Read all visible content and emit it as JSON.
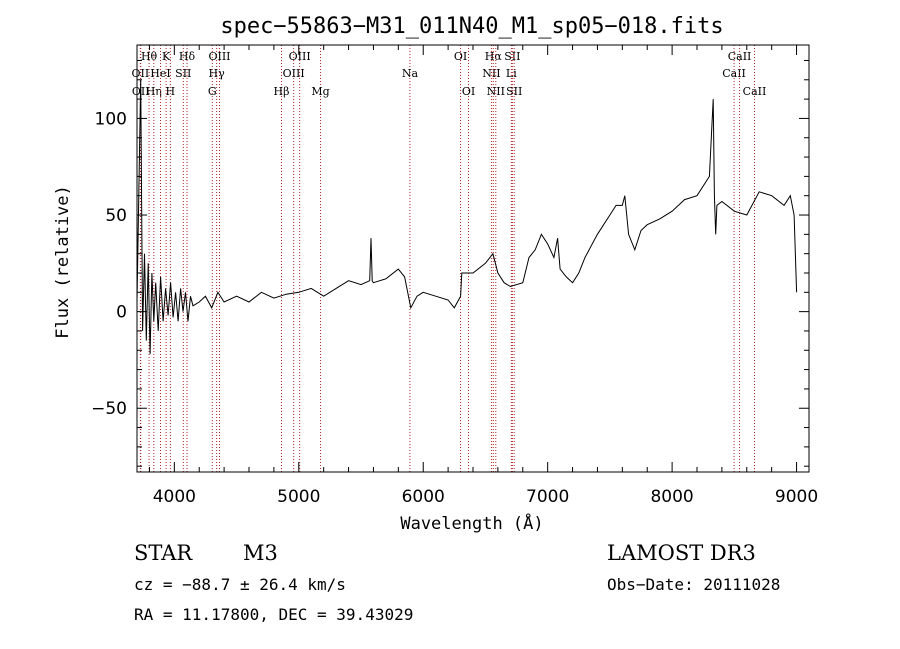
{
  "chart_data": {
    "type": "line",
    "title": "spec−55863−M31_011N40_M1_sp05−018.fits",
    "xlabel": "Wavelength (Å)",
    "ylabel": "Flux (relative)",
    "xlim": [
      3700,
      9100
    ],
    "ylim": [
      -83,
      138
    ],
    "x_ticks": [
      4000,
      5000,
      6000,
      7000,
      8000,
      9000
    ],
    "x_tick_labels": [
      "4000",
      "5000",
      "6000",
      "7000",
      "8000",
      "9000"
    ],
    "y_ticks": [
      -50,
      0,
      50,
      100
    ],
    "y_tick_labels": [
      "−50",
      "0",
      "50",
      "100"
    ],
    "series": [
      {
        "name": "spectrum",
        "color": "#000000",
        "x": [
          3700,
          3730,
          3745,
          3760,
          3775,
          3790,
          3805,
          3820,
          3835,
          3850,
          3870,
          3890,
          3910,
          3930,
          3950,
          3970,
          3990,
          4010,
          4030,
          4050,
          4070,
          4090,
          4110,
          4130,
          4150,
          4200,
          4250,
          4300,
          4350,
          4400,
          4500,
          4600,
          4700,
          4800,
          4900,
          5000,
          5100,
          5200,
          5300,
          5400,
          5500,
          5570,
          5580,
          5590,
          5600,
          5700,
          5800,
          5850,
          5900,
          5950,
          6000,
          6100,
          6200,
          6250,
          6300,
          6310,
          6400,
          6500,
          6560,
          6600,
          6650,
          6700,
          6800,
          6850,
          6900,
          6950,
          7000,
          7050,
          7080,
          7100,
          7150,
          7200,
          7250,
          7300,
          7400,
          7500,
          7550,
          7600,
          7620,
          7650,
          7700,
          7750,
          7800,
          7900,
          8000,
          8100,
          8200,
          8300,
          8330,
          8340,
          8350,
          8360,
          8400,
          8500,
          8600,
          8700,
          8800,
          8900,
          8950,
          8980,
          9000
        ],
        "values": [
          5,
          120,
          -10,
          30,
          -15,
          25,
          -22,
          20,
          -5,
          15,
          -10,
          18,
          -5,
          12,
          -2,
          15,
          -3,
          10,
          -5,
          12,
          0,
          10,
          -5,
          8,
          3,
          5,
          8,
          2,
          10,
          5,
          8,
          5,
          10,
          7,
          9,
          10,
          12,
          8,
          12,
          16,
          14,
          16,
          38,
          16,
          15,
          17,
          22,
          18,
          2,
          8,
          10,
          8,
          6,
          2,
          8,
          20,
          20,
          25,
          30,
          20,
          15,
          13,
          15,
          28,
          32,
          40,
          35,
          28,
          38,
          22,
          18,
          15,
          20,
          28,
          40,
          50,
          55,
          55,
          60,
          40,
          32,
          42,
          45,
          48,
          52,
          58,
          60,
          70,
          110,
          60,
          40,
          55,
          57,
          52,
          50,
          62,
          60,
          55,
          60,
          50,
          10
        ]
      }
    ],
    "line_markers": [
      {
        "wavelength": 3727,
        "label": "OII",
        "row": 2
      },
      {
        "wavelength": 3730,
        "label": "OII",
        "row": 3
      },
      {
        "wavelength": 3797,
        "label": "Hθ",
        "row": 1
      },
      {
        "wavelength": 3835,
        "label": "Hη",
        "row": 3
      },
      {
        "wavelength": 3889,
        "label": "HeI",
        "row": 2
      },
      {
        "wavelength": 3934,
        "label": "K",
        "row": 1
      },
      {
        "wavelength": 3968,
        "label": "H",
        "row": 3
      },
      {
        "wavelength": 4072,
        "label": "SII",
        "row": 2
      },
      {
        "wavelength": 4102,
        "label": "Hδ",
        "row": 1
      },
      {
        "wavelength": 4305,
        "label": "G",
        "row": 3
      },
      {
        "wavelength": 4340,
        "label": "Hγ",
        "row": 2
      },
      {
        "wavelength": 4363,
        "label": "OIII",
        "row": 1
      },
      {
        "wavelength": 4861,
        "label": "Hβ",
        "row": 3
      },
      {
        "wavelength": 4959,
        "label": "OIII",
        "row": 2
      },
      {
        "wavelength": 5007,
        "label": "OIII",
        "row": 1
      },
      {
        "wavelength": 5175,
        "label": "Mg",
        "row": 3
      },
      {
        "wavelength": 5893,
        "label": "Na",
        "row": 2
      },
      {
        "wavelength": 6300,
        "label": "OI",
        "row": 1
      },
      {
        "wavelength": 6364,
        "label": "OI",
        "row": 3
      },
      {
        "wavelength": 6548,
        "label": "NII",
        "row": 2
      },
      {
        "wavelength": 6563,
        "label": "Hα",
        "row": 1
      },
      {
        "wavelength": 6583,
        "label": "NII",
        "row": 3
      },
      {
        "wavelength": 6708,
        "label": "Li",
        "row": 2
      },
      {
        "wavelength": 6716,
        "label": "SII",
        "row": 1
      },
      {
        "wavelength": 6731,
        "label": "SII",
        "row": 3
      },
      {
        "wavelength": 8498,
        "label": "CaII",
        "row": 2
      },
      {
        "wavelength": 8542,
        "label": "CaII",
        "row": 1
      },
      {
        "wavelength": 8662,
        "label": "CaII",
        "row": 3
      }
    ],
    "marker_color": "#b22222"
  },
  "info": {
    "object_class": "STAR",
    "subclass": "M3",
    "survey": "LAMOST DR3",
    "redshift_line": "cz = −88.7 ± 26.4 km/s",
    "obs_date": "Obs−Date: 20111028",
    "coords": "RA =  11.17800, DEC =  39.43029"
  }
}
